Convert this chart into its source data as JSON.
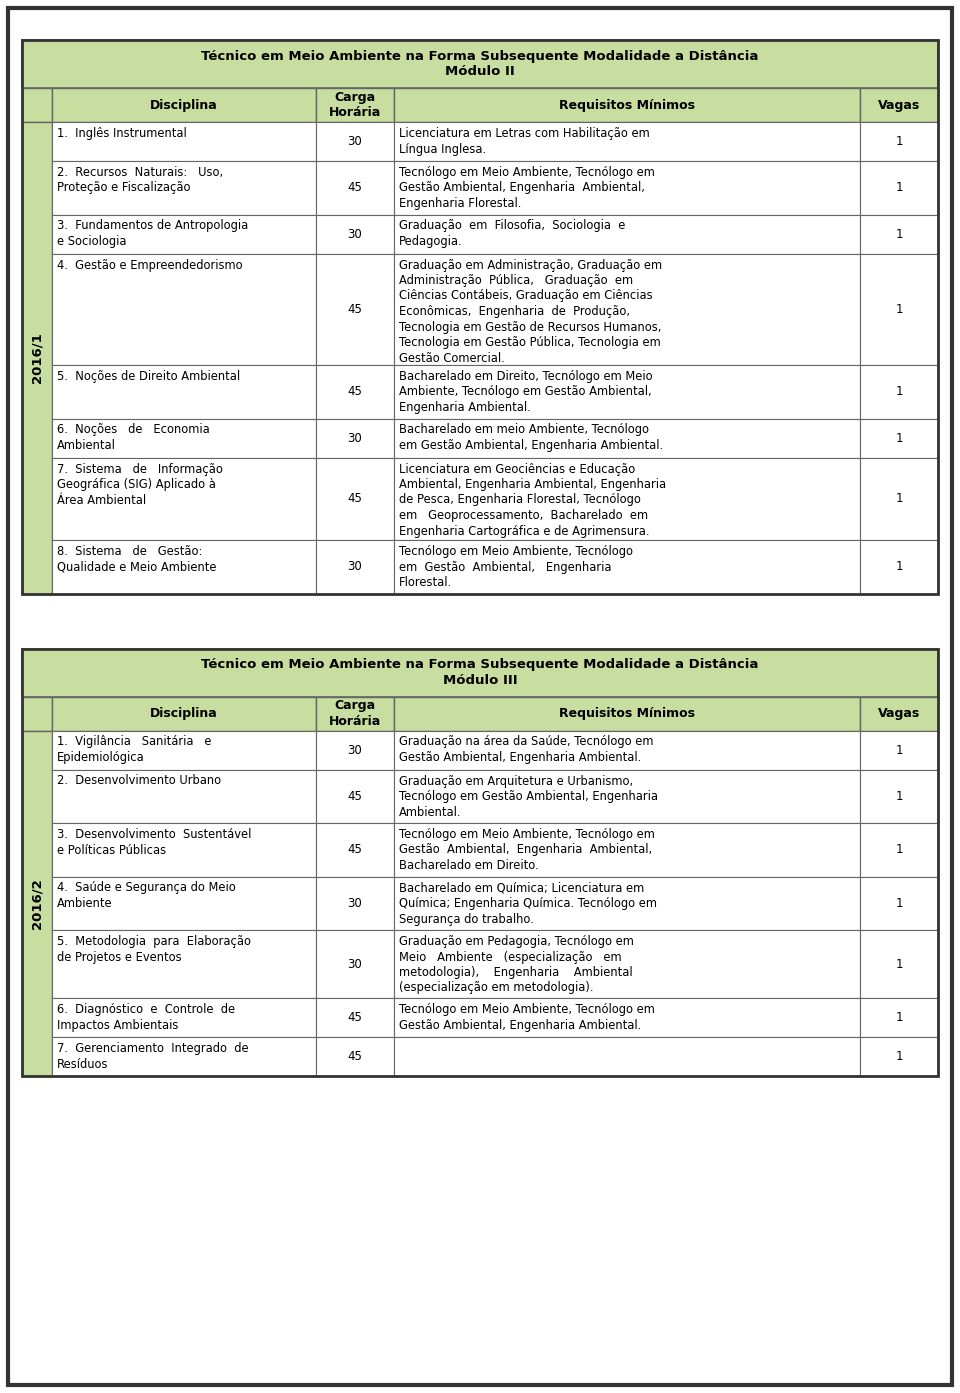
{
  "background_color": "#ffffff",
  "outer_border_color": "#555555",
  "header_bg": "#c8dda0",
  "year_bg": "#c8dda0",
  "row_bg": "#ffffff",
  "grid_color": "#666666",
  "table1": {
    "title": "Técnico em Meio Ambiente na Forma Subsequente Modalidade a Distância\nMódulo II",
    "year_label": "2016/1",
    "columns": [
      "Disciplina",
      "Carga\nHorária",
      "Requisitos Mínimos",
      "Vagas"
    ],
    "rows": [
      {
        "disciplina": "1.  Inglês Instrumental",
        "carga": "30",
        "requisitos": "Licenciatura em Letras com Habilitação em\nLíngua Inglesa.",
        "vagas": "1",
        "disc_lines": 1,
        "req_lines": 2
      },
      {
        "disciplina": "2.  Recursos  Naturais:   Uso,\nProteção e Fiscalização",
        "carga": "45",
        "requisitos": "Tecnólogo em Meio Ambiente, Tecnólogo em\nGestão Ambiental, Engenharia  Ambiental,\nEngenharia Florestal.",
        "vagas": "1",
        "disc_lines": 2,
        "req_lines": 3
      },
      {
        "disciplina": "3.  Fundamentos de Antropologia\ne Sociologia",
        "carga": "30",
        "requisitos": "Graduação  em  Filosofia,  Sociologia  e\nPedagogia.",
        "vagas": "1",
        "disc_lines": 2,
        "req_lines": 2
      },
      {
        "disciplina": "4.  Gestão e Empreendedorismo",
        "carga": "45",
        "requisitos": "Graduação em Administração, Graduação em\nAdministração  Pública,   Graduação  em\nCiências Contábeis, Graduação em Ciências\nEconômicas,  Engenharia  de  Produção,\nTecnologia em Gestão de Recursos Humanos,\nTecnologia em Gestão Pública, Tecnologia em\nGestão Comercial.",
        "vagas": "1",
        "disc_lines": 1,
        "req_lines": 7
      },
      {
        "disciplina": "5.  Noções de Direito Ambiental",
        "carga": "45",
        "requisitos": "Bacharelado em Direito, Tecnólogo em Meio\nAmbiente, Tecnólogo em Gestão Ambiental,\nEngenharia Ambiental.",
        "vagas": "1",
        "disc_lines": 1,
        "req_lines": 3
      },
      {
        "disciplina": "6.  Noções   de   Economia\nAmbiental",
        "carga": "30",
        "requisitos": "Bacharelado em meio Ambiente, Tecnólogo\nem Gestão Ambiental, Engenharia Ambiental.",
        "vagas": "1",
        "disc_lines": 2,
        "req_lines": 2
      },
      {
        "disciplina": "7.  Sistema   de   Informação\nGeográfica (SIG) Aplicado à\nÁrea Ambiental",
        "carga": "45",
        "requisitos": "Licenciatura em Geociências e Educação\nAmbiental, Engenharia Ambiental, Engenharia\nde Pesca, Engenharia Florestal, Tecnólogo\nem   Geoprocessamento,  Bacharelado  em\nEngenharia Cartográfica e de Agrimensura.",
        "vagas": "1",
        "disc_lines": 3,
        "req_lines": 5
      },
      {
        "disciplina": "8.  Sistema   de   Gestão:\nQualidade e Meio Ambiente",
        "carga": "30",
        "requisitos": "Tecnólogo em Meio Ambiente, Tecnólogo\nem  Gestão  Ambiental,   Engenharia\nFlorestal.",
        "vagas": "1",
        "disc_lines": 2,
        "req_lines": 3
      }
    ]
  },
  "table2": {
    "title": "Técnico em Meio Ambiente na Forma Subsequente Modalidade a Distância\nMódulo III",
    "year_label": "2016/2",
    "columns": [
      "Disciplina",
      "Carga\nHorária",
      "Requisitos Mínimos",
      "Vagas"
    ],
    "rows": [
      {
        "disciplina": "1.  Vigilância   Sanitária   e\nEpidemiológica",
        "carga": "30",
        "requisitos": "Graduação na área da Saúde, Tecnólogo em\nGestão Ambiental, Engenharia Ambiental.",
        "vagas": "1",
        "disc_lines": 2,
        "req_lines": 2
      },
      {
        "disciplina": "2.  Desenvolvimento Urbano",
        "carga": "45",
        "requisitos": "Graduação em Arquitetura e Urbanismo,\nTecnólogo em Gestão Ambiental, Engenharia\nAmbiental.",
        "vagas": "1",
        "disc_lines": 1,
        "req_lines": 3
      },
      {
        "disciplina": "3.  Desenvolvimento  Sustentável\ne Políticas Públicas",
        "carga": "45",
        "requisitos": "Tecnólogo em Meio Ambiente, Tecnólogo em\nGestão  Ambiental,  Engenharia  Ambiental,\nBacharelado em Direito.",
        "vagas": "1",
        "disc_lines": 2,
        "req_lines": 3
      },
      {
        "disciplina": "4.  Saúde e Segurança do Meio\nAmbiente",
        "carga": "30",
        "requisitos": "Bacharelado em Química; Licenciatura em\nQuímica; Engenharia Química. Tecnólogo em\nSegurança do trabalho.",
        "vagas": "1",
        "disc_lines": 2,
        "req_lines": 3
      },
      {
        "disciplina": "5.  Metodologia  para  Elaboração\nde Projetos e Eventos",
        "carga": "30",
        "requisitos": "Graduação em Pedagogia, Tecnólogo em\nMeio   Ambiente   (especialização   em\nmetodologia),    Engenharia    Ambiental\n(especialização em metodologia).",
        "vagas": "1",
        "disc_lines": 2,
        "req_lines": 4
      },
      {
        "disciplina": "6.  Diagnóstico  e  Controle  de\nImpactos Ambientais",
        "carga": "45",
        "requisitos": "Tecnólogo em Meio Ambiente, Tecnólogo em\nGestão Ambiental, Engenharia Ambiental.",
        "vagas": "1",
        "disc_lines": 2,
        "req_lines": 2
      },
      {
        "disciplina": "7.  Gerenciamento  Integrado  de\nResíduos",
        "carga": "45",
        "requisitos": "",
        "vagas": "1",
        "disc_lines": 2,
        "req_lines": 0
      }
    ]
  }
}
